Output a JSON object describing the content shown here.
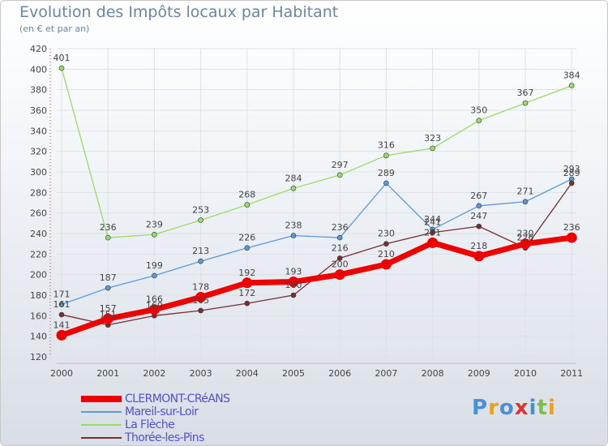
{
  "chart_data": {
    "type": "line",
    "title": "Evolution des Impôts locaux par Habitant",
    "subtitle": "(en € et par an)",
    "xlabel": "",
    "ylabel": "",
    "ylim": [
      120,
      420
    ],
    "yticks": [
      120,
      140,
      160,
      180,
      200,
      220,
      240,
      260,
      280,
      300,
      320,
      340,
      360,
      380,
      400,
      420
    ],
    "categories": [
      "2000",
      "2001",
      "2002",
      "2003",
      "2004",
      "2005",
      "2006",
      "2007",
      "2008",
      "2009",
      "2010",
      "2011"
    ],
    "series": [
      {
        "name": "CLERMONT-CRéANS",
        "color": "#ee0000",
        "values": [
          141,
          157,
          166,
          178,
          192,
          193,
          200,
          210,
          231,
          218,
          230,
          236
        ]
      },
      {
        "name": "Mareil-sur-Loir",
        "color": "#5b9bd5",
        "values": [
          171,
          187,
          199,
          213,
          226,
          238,
          236,
          289,
          244,
          267,
          271,
          293
        ]
      },
      {
        "name": "La Flèche",
        "color": "#99dd66",
        "values": [
          401,
          236,
          239,
          253,
          268,
          284,
          297,
          316,
          323,
          350,
          367,
          384
        ]
      },
      {
        "name": "Thorée-les-Pins",
        "color": "#7a2e2e",
        "values": [
          161,
          151,
          160,
          165,
          172,
          180,
          216,
          230,
          241,
          247,
          226,
          289
        ]
      }
    ]
  },
  "logo": {
    "text": "Proxiti"
  }
}
